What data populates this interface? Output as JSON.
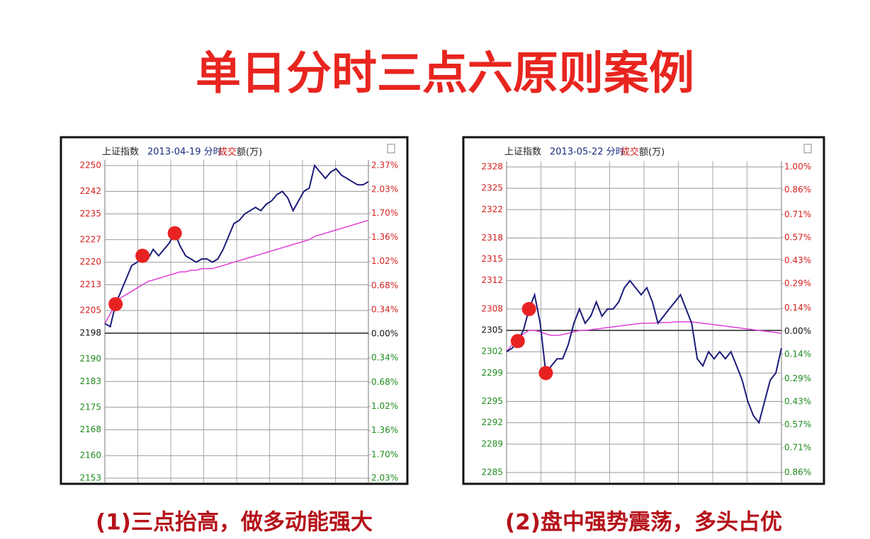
{
  "title": "单日分时三点六原则案例",
  "chart_data": [
    {
      "type": "line",
      "index_name": "上证指数",
      "date_label": "2013-04-19 分时",
      "volume_label": [
        "成交",
        "额(万)"
      ],
      "caption": "(1)三点抬高，做多动能强大",
      "ylim": [
        2153,
        2250
      ],
      "yticks": [
        2250,
        2242,
        2235,
        2227,
        2220,
        2213,
        2205,
        2198,
        2190,
        2183,
        2175,
        2168,
        2160,
        2153
      ],
      "y2lim": [
        -2.03,
        2.37
      ],
      "y2ticks": [
        {
          "value": 2.37,
          "label": "2.37%"
        },
        {
          "value": 2.03,
          "label": "2.03%"
        },
        {
          "value": 1.7,
          "label": "1.70%"
        },
        {
          "value": 1.36,
          "label": "1.36%"
        },
        {
          "value": 1.02,
          "label": "1.02%"
        },
        {
          "value": 0.68,
          "label": "0.68%"
        },
        {
          "value": 0.34,
          "label": "0.34%"
        },
        {
          "value": 0,
          "label": "0.00%"
        },
        {
          "value": -0.34,
          "label": "0.34%"
        },
        {
          "value": -0.68,
          "label": "0.68%"
        },
        {
          "value": -1.02,
          "label": "1.02%"
        },
        {
          "value": -1.36,
          "label": "1.36%"
        },
        {
          "value": -1.7,
          "label": "1.70%"
        },
        {
          "value": -2.03,
          "label": "2.03%"
        }
      ],
      "up_color": "#d42020",
      "down_color": "#1f8a1f",
      "series": [
        {
          "color": "#1c1c7a",
          "values": [
            2201,
            2200,
            2207,
            2211,
            2215,
            2219,
            2220,
            2222,
            2221,
            2224,
            2222,
            2224,
            2226,
            2229,
            2225,
            2222,
            2221,
            2220,
            2221,
            2221,
            2220,
            2221,
            2224,
            2228,
            2232,
            2233,
            2235,
            2236,
            2237,
            2236,
            2238,
            2239,
            2241,
            2242,
            2240,
            2236,
            2239,
            2242,
            2243,
            2250,
            2248,
            2246,
            2248,
            2249,
            2247,
            2246,
            2245,
            2244,
            2244,
            2245
          ]
        },
        {
          "color": "#e040d8",
          "values": [
            2201,
            2204,
            2207,
            2209,
            2210,
            2211,
            2212,
            2213,
            2214,
            2214.5,
            2215,
            2215.5,
            2216,
            2216.5,
            2217,
            2217,
            2217.5,
            2217.5,
            2218,
            2218,
            2218,
            2218.5,
            2219,
            2219.5,
            2220,
            2220.5,
            2221,
            2221.5,
            2222,
            2222.5,
            2223,
            2223.5,
            2224,
            2224.5,
            2225,
            2225.5,
            2226,
            2226.5,
            2227,
            2228,
            2228.5,
            2229,
            2229.5,
            2230,
            2230.5,
            2231,
            2231.5,
            2232,
            2232.5,
            2233
          ]
        }
      ],
      "markers": {
        "color": "#e82222",
        "x": [
          2,
          7,
          13
        ],
        "values": [
          2207,
          2222,
          2229
        ]
      }
    },
    {
      "type": "line",
      "index_name": "上证指数",
      "date_label": "2013-05-22 分时",
      "volume_label": [
        "成交",
        "额(万)"
      ],
      "caption": "(2)盘中强势震荡，多头占优",
      "ylim": [
        2285,
        2328
      ],
      "yticks": [
        2328,
        2325,
        2322,
        2318,
        2315,
        2312,
        2308,
        2305,
        2302,
        2299,
        2295,
        2292,
        2289,
        2285
      ],
      "y2lim": [
        -0.86,
        1
      ],
      "y2ticks": [
        {
          "value": 1,
          "label": "1.00%"
        },
        {
          "value": 0.86,
          "label": "0.86%"
        },
        {
          "value": 0.71,
          "label": "0.71%"
        },
        {
          "value": 0.57,
          "label": "0.57%"
        },
        {
          "value": 0.43,
          "label": "0.43%"
        },
        {
          "value": 0.29,
          "label": "0.29%"
        },
        {
          "value": 0.14,
          "label": "0.14%"
        },
        {
          "value": 0,
          "label": "0.00%"
        },
        {
          "value": -0.14,
          "label": "0.14%"
        },
        {
          "value": -0.29,
          "label": "0.29%"
        },
        {
          "value": -0.43,
          "label": "0.43%"
        },
        {
          "value": -0.57,
          "label": "0.57%"
        },
        {
          "value": -0.71,
          "label": "0.71%"
        },
        {
          "value": -0.86,
          "label": "0.86%"
        }
      ],
      "up_color": "#d42020",
      "down_color": "#1f8a1f",
      "series": [
        {
          "color": "#1c1c7a",
          "values": [
            2302,
            2302.5,
            2303.5,
            2305,
            2308,
            2310,
            2306,
            2299,
            2300,
            2301,
            2301,
            2303,
            2306,
            2308,
            2306,
            2307,
            2309,
            2307,
            2308,
            2308,
            2309,
            2311,
            2312,
            2311,
            2310,
            2311,
            2309,
            2306,
            2307,
            2308,
            2309,
            2310,
            2308,
            2306,
            2301,
            2300,
            2302,
            2301,
            2302,
            2301,
            2302,
            2300,
            2298,
            2295,
            2293,
            2292,
            2295,
            2298,
            2299,
            2302.5
          ]
        },
        {
          "color": "#e040d8",
          "values": [
            2302,
            2303,
            2304,
            2304.5,
            2305,
            2305,
            2304.8,
            2304.5,
            2304.3,
            2304.3,
            2304.4,
            2304.6,
            2304.8,
            2305,
            2305,
            2305.1,
            2305.2,
            2305.3,
            2305.4,
            2305.5,
            2305.6,
            2305.7,
            2305.8,
            2305.9,
            2306,
            2306,
            2306,
            2306.1,
            2306.1,
            2306.1,
            2306.2,
            2306.2,
            2306.2,
            2306.2,
            2306.1,
            2306,
            2305.9,
            2305.8,
            2305.7,
            2305.6,
            2305.5,
            2305.4,
            2305.3,
            2305.2,
            2305.1,
            2305,
            2304.9,
            2304.8,
            2304.7,
            2304.6
          ]
        }
      ],
      "markers": {
        "color": "#e82222",
        "x": [
          2,
          4,
          7
        ],
        "values": [
          2303.5,
          2308,
          2299
        ]
      }
    }
  ]
}
